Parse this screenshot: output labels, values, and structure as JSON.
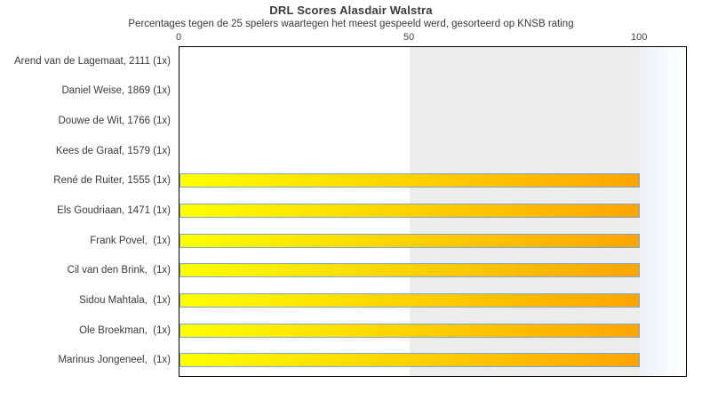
{
  "chart_data": {
    "type": "bar",
    "orientation": "horizontal",
    "title": "DRL Scores Alasdair Walstra",
    "subtitle": "Percentages tegen de 25 spelers waartegen het meest gespeeld werd, gesorteerd op KNSB rating",
    "categories": [
      "Arend van de Lagemaat, 2111 (1x)",
      "Daniel Weise, 1869 (1x)",
      "Douwe de Wit, 1766 (1x)",
      "Kees de Graaf, 1579 (1x)",
      "René de Ruiter, 1555 (1x)",
      "Els Goudriaan, 1471 (1x)",
      "Frank Povel,  (1x)",
      "Cil van den Brink,  (1x)",
      "Sidou Mahtala,  (1x)",
      "Ole Broekman,  (1x)",
      "Marinus Jongeneel,  (1x)"
    ],
    "values": [
      0,
      0,
      0,
      0,
      100,
      100,
      100,
      100,
      100,
      100,
      100
    ],
    "xlabel": "",
    "ylabel": "",
    "xticks": [
      0,
      50,
      100
    ],
    "xlim": [
      0,
      110
    ],
    "grid": false,
    "legend": null,
    "background_bands": [
      {
        "from": 50,
        "to": 100,
        "color": "#ededed"
      },
      {
        "from": 100,
        "to": 110,
        "color": "#ecf3f9"
      }
    ],
    "colors": {
      "bar_gradient_start": "#ffff00",
      "bar_gradient_end": "#ffa500",
      "bar_border": "#7da7d8",
      "band_mid": "#ededed",
      "band_right": "#ecf3f9",
      "plot_border": "#000000",
      "text": "#3a3a3a"
    }
  }
}
